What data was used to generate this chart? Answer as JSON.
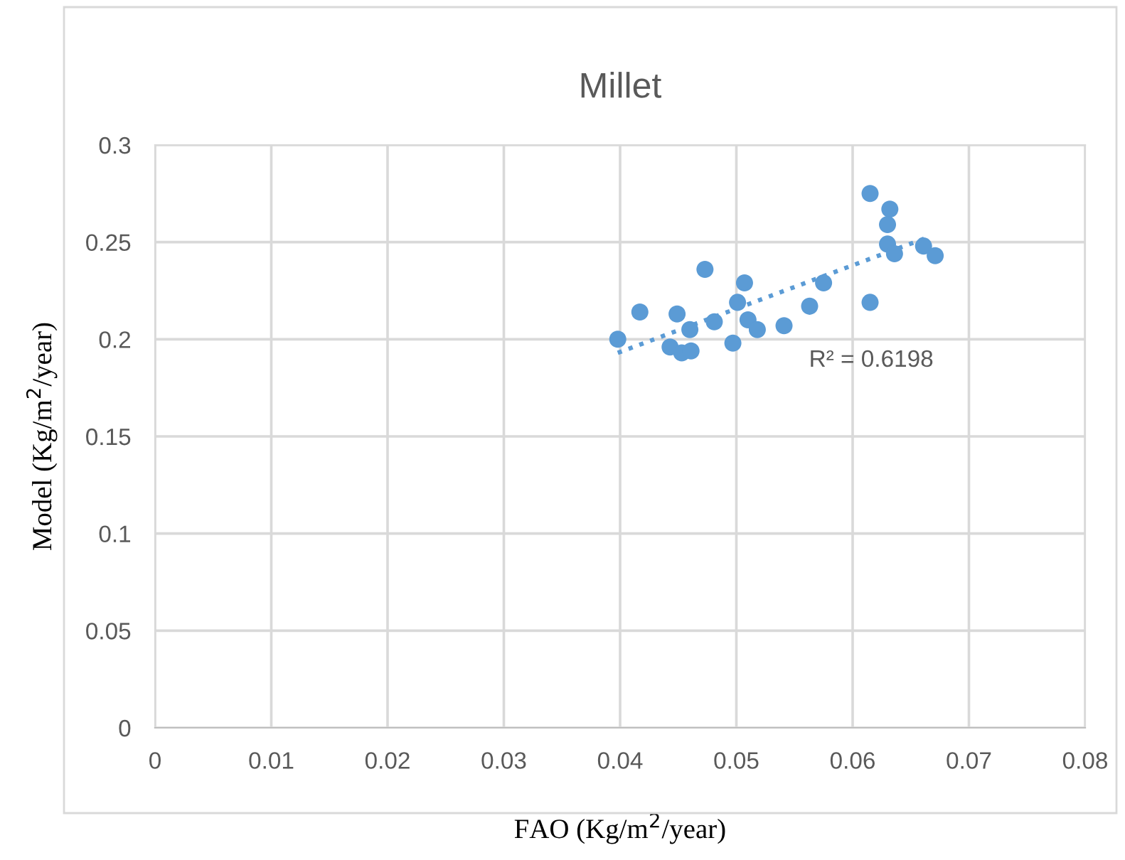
{
  "chart_data": {
    "type": "scatter",
    "title": "Millet",
    "xlabel": "FAO (Kg/m$^{2}$/year)",
    "ylabel": "Model (Kg/m$^{2}$/year)",
    "xlim": [
      0,
      0.08
    ],
    "xticks": [
      0,
      0.01,
      0.02,
      0.03,
      0.04,
      0.05,
      0.06,
      0.07,
      0.08
    ],
    "ylim": [
      0,
      0.3
    ],
    "yticks": [
      0,
      0.05,
      0.1,
      0.15,
      0.2,
      0.25,
      0.3
    ],
    "grid": true,
    "legend": false,
    "series": [
      {
        "marker": "circle",
        "color": "#5b9bd5",
        "x": [
          0.0615,
          0.0632,
          0.063,
          0.063,
          0.0636,
          0.0661,
          0.0671,
          0.0615,
          0.0575,
          0.0563,
          0.0541,
          0.0507,
          0.0501,
          0.051,
          0.0518,
          0.0497,
          0.0481,
          0.0473,
          0.046,
          0.0449,
          0.0443,
          0.0453,
          0.0461,
          0.0417,
          0.0398
        ],
        "values": [
          0.275,
          0.267,
          0.259,
          0.249,
          0.244,
          0.248,
          0.243,
          0.219,
          0.229,
          0.217,
          0.207,
          0.229,
          0.219,
          0.21,
          0.205,
          0.198,
          0.209,
          0.236,
          0.205,
          0.213,
          0.196,
          0.193,
          0.194,
          0.214,
          0.2
        ]
      },
      {
        "type": "line",
        "line_style": "dotted",
        "color": "#5b9bd5",
        "x": [
          0.0398,
          0.0667
        ],
        "values": [
          0.193,
          0.253
        ]
      }
    ],
    "annotations": [
      "R² = 0.6198"
    ]
  }
}
